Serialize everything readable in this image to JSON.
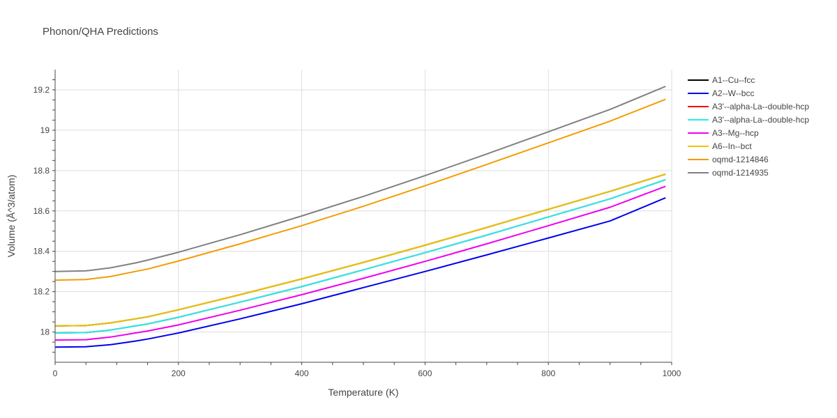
{
  "chart_data": {
    "type": "line",
    "title": "Phonon/QHA Predictions",
    "xlabel": "Temperature (K)",
    "ylabel": "Volume (Å^3/atom)",
    "xlim": [
      0,
      1000
    ],
    "ylim": [
      17.85,
      19.3
    ],
    "x_ticks": [
      0,
      200,
      400,
      600,
      800,
      1000
    ],
    "y_ticks": [
      18,
      18.2,
      18.4,
      18.6,
      18.8,
      19,
      19.2
    ],
    "x_tick_labels": [
      "0",
      "200",
      "400",
      "600",
      "800",
      "1000"
    ],
    "y_tick_labels": [
      "18",
      "18.2",
      "18.4",
      "18.6",
      "18.8",
      "19",
      "19.2"
    ],
    "grid": true,
    "legend_position": "top-right",
    "x": [
      0,
      50,
      90,
      130,
      150,
      200,
      300,
      400,
      500,
      600,
      700,
      800,
      900,
      990
    ],
    "series": [
      {
        "name": "A1--Cu--fcc",
        "color": "#000000",
        "values": [
          18.03,
          18.032,
          18.045,
          18.065,
          18.075,
          18.11,
          18.185,
          18.263,
          18.345,
          18.43,
          18.518,
          18.608,
          18.697,
          18.782
        ]
      },
      {
        "name": "A2--W--bcc",
        "color": "#0000ee",
        "values": [
          17.925,
          17.927,
          17.937,
          17.955,
          17.965,
          17.995,
          18.065,
          18.14,
          18.22,
          18.3,
          18.382,
          18.466,
          18.55,
          18.665
        ]
      },
      {
        "name": "A3'--alpha-La--double-hcp",
        "color": "#ff0000",
        "values": [
          17.995,
          17.997,
          18.01,
          18.03,
          18.04,
          18.073,
          18.148,
          18.225,
          18.308,
          18.393,
          18.48,
          18.57,
          18.66,
          18.755
        ]
      },
      {
        "name": "A3'--alpha-La--double-hcp",
        "color": "#22eeee",
        "values": [
          17.995,
          17.997,
          18.01,
          18.03,
          18.04,
          18.073,
          18.148,
          18.225,
          18.308,
          18.393,
          18.48,
          18.57,
          18.66,
          18.755
        ]
      },
      {
        "name": "A3--Mg--hcp",
        "color": "#ee00ee",
        "values": [
          17.96,
          17.962,
          17.975,
          17.995,
          18.005,
          18.035,
          18.108,
          18.185,
          18.266,
          18.35,
          18.437,
          18.527,
          18.618,
          18.722
        ]
      },
      {
        "name": "A6--In--bct",
        "color": "#f2c300",
        "values": [
          18.03,
          18.032,
          18.045,
          18.065,
          18.075,
          18.11,
          18.185,
          18.263,
          18.345,
          18.43,
          18.518,
          18.608,
          18.697,
          18.782
        ]
      },
      {
        "name": "oqmd-1214846",
        "color": "#f59b00",
        "values": [
          18.257,
          18.26,
          18.275,
          18.3,
          18.312,
          18.352,
          18.437,
          18.527,
          18.623,
          18.725,
          18.83,
          18.937,
          19.045,
          19.153
        ]
      },
      {
        "name": "oqmd-1214935",
        "color": "#808080",
        "values": [
          18.3,
          18.303,
          18.318,
          18.342,
          18.356,
          18.395,
          18.482,
          18.575,
          18.672,
          18.775,
          18.882,
          18.992,
          19.103,
          19.217
        ]
      }
    ]
  }
}
